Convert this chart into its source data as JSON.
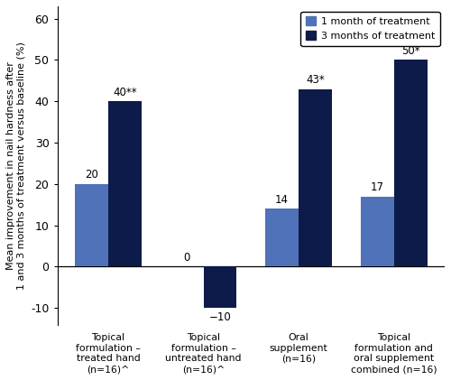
{
  "categories": [
    "Topical\nformulation –\ntreated hand\n(n=16)^",
    "Topical\nformulation –\nuntreated hand\n(n=16)^",
    "Oral\nsupplement\n(n=16)",
    "Topical\nformulation and\noral supplement\ncombined (n=16)"
  ],
  "values_1month": [
    20,
    0,
    14,
    17
  ],
  "values_3month": [
    40,
    -10,
    43,
    50
  ],
  "labels_1month": [
    "20",
    "0",
    "14",
    "17"
  ],
  "labels_3month": [
    "40**",
    "−10",
    "43*",
    "50*"
  ],
  "color_1month": "#4F72B8",
  "color_3month": "#0D1B4B",
  "ylabel": "Mean improvement in nail hardness after\n1 and 3 months of treatment versus baseline (%)",
  "ylim": [
    -14,
    63
  ],
  "yticks": [
    -10,
    0,
    10,
    20,
    30,
    40,
    50,
    60
  ],
  "legend_1month": "1 month of treatment",
  "legend_3month": "3 months of treatment",
  "bar_width": 0.35,
  "figsize": [
    5.0,
    4.21
  ],
  "dpi": 100
}
